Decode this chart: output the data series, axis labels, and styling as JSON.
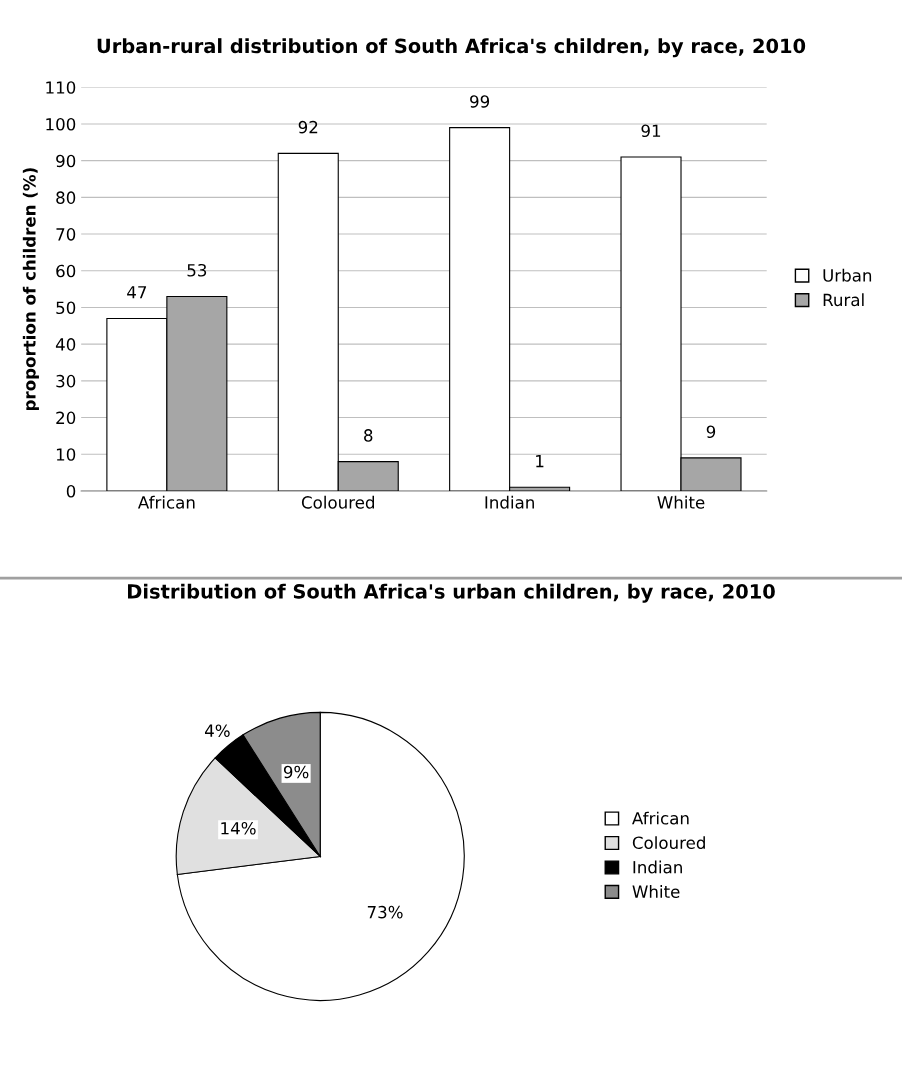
{
  "chart_data": [
    {
      "type": "bar",
      "title": "Urban-rural distribution of South Africa's children, by race, 2010",
      "ylabel": "proportion of children (%)",
      "categories": [
        "African",
        "Coloured",
        "Indian",
        "White"
      ],
      "series": [
        {
          "name": "Urban",
          "color": "#ffffff",
          "values": [
            47,
            92,
            99,
            91
          ]
        },
        {
          "name": "Rural",
          "color": "#a6a6a6",
          "values": [
            53,
            8,
            1,
            9
          ]
        }
      ],
      "ylim": [
        0,
        110
      ],
      "yticks": [
        0,
        10,
        20,
        30,
        40,
        50,
        60,
        70,
        80,
        90,
        100,
        110
      ],
      "grid": "y",
      "legend": "right",
      "data_labels": true
    },
    {
      "type": "pie",
      "title": "Distribution of South Africa's urban children, by race, 2010",
      "categories": [
        "African",
        "Coloured",
        "Indian",
        "White"
      ],
      "values": [
        73,
        14,
        4,
        9
      ],
      "colors": [
        "#ffffff",
        "#e0e0e0",
        "#000000",
        "#8c8c8c"
      ],
      "value_labels": [
        "73%",
        "14%",
        "4%",
        "9%"
      ],
      "legend": "right"
    }
  ]
}
